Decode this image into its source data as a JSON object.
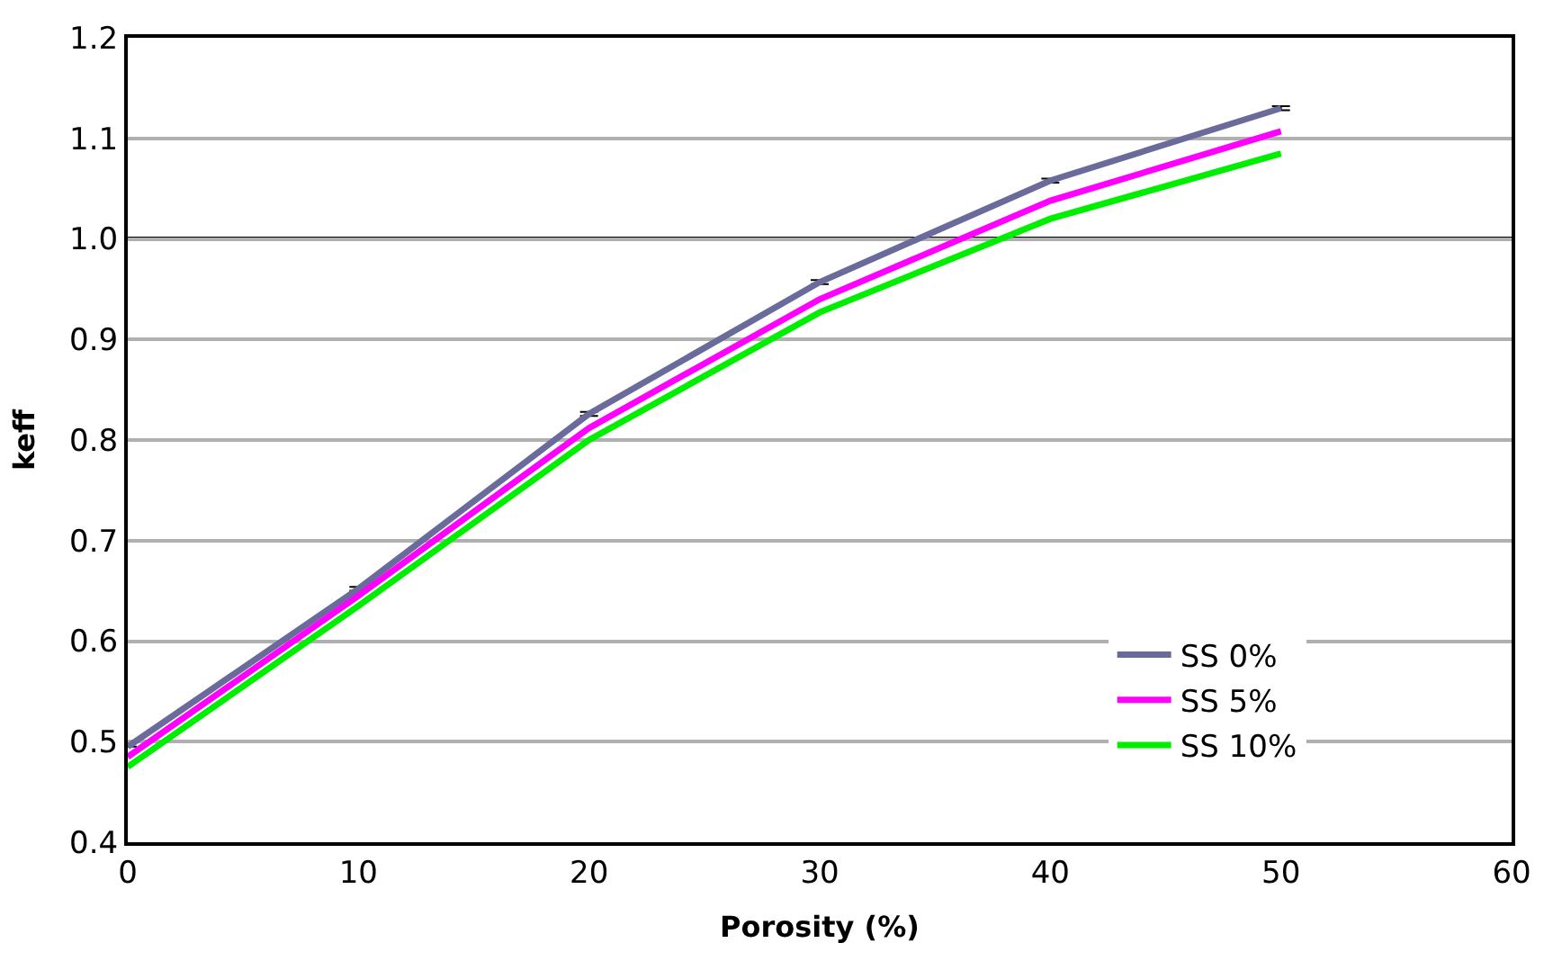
{
  "chart_data": {
    "type": "line",
    "xlabel": "Porosity (%)",
    "ylabel": "keff",
    "x": [
      0,
      10,
      20,
      30,
      40,
      50
    ],
    "series": [
      {
        "name": "SS 0%",
        "color": "#6b6b9b",
        "values": [
          0.495,
          0.652,
          0.826,
          0.957,
          1.058,
          1.13
        ],
        "errors": [
          null,
          0.002,
          0.002,
          0.002,
          0.002,
          0.002
        ]
      },
      {
        "name": "SS 5%",
        "color": "#ff00ff",
        "values": [
          0.485,
          0.645,
          0.812,
          0.94,
          1.038,
          1.107
        ]
      },
      {
        "name": "SS 10%",
        "color": "#00ee00",
        "values": [
          0.475,
          0.635,
          0.8,
          0.927,
          1.02,
          1.085
        ]
      }
    ],
    "xlim": [
      0,
      60
    ],
    "xticks": [
      0,
      10,
      20,
      30,
      40,
      50,
      60
    ],
    "ylim": [
      0.4,
      1.2
    ],
    "yticks": [
      {
        "value": 0.4,
        "label": "0.4"
      },
      {
        "value": 0.5,
        "label": "0.5"
      },
      {
        "value": 0.6,
        "label": "0.6"
      },
      {
        "value": 0.7,
        "label": "0.7"
      },
      {
        "value": 0.8,
        "label": "0.8"
      },
      {
        "value": 0.9,
        "label": "0.9"
      },
      {
        "value": 1.0,
        "label": "1.0"
      },
      {
        "value": 1.1,
        "label": "1.1"
      },
      {
        "value": 1.2,
        "label": "1.2"
      }
    ],
    "ref_lines": [
      {
        "axis": "y",
        "value": 1.0,
        "color": "#000000"
      }
    ],
    "grid": "y",
    "legend": "bottom right",
    "marker": "none",
    "line_style": "solid"
  }
}
